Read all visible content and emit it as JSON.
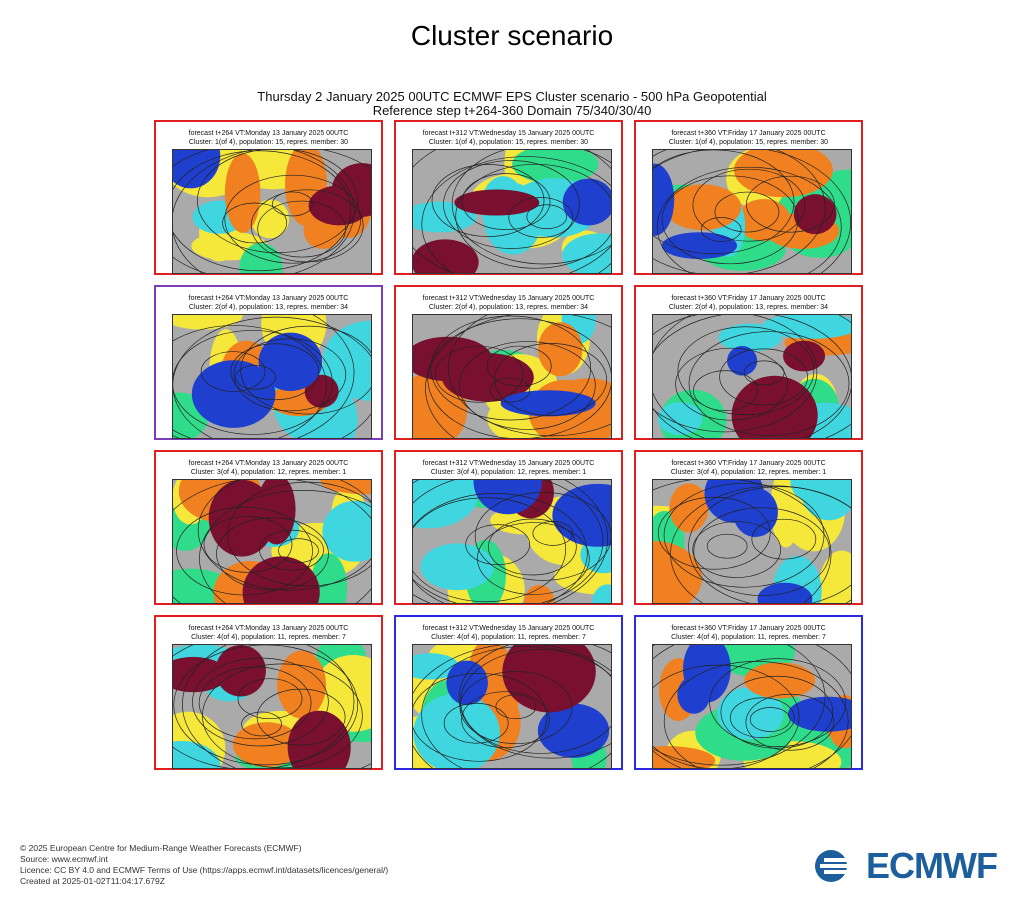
{
  "page_title": "Cluster scenario",
  "header": {
    "line1": "Thursday 2 January 2025 00UTC ECMWF EPS Cluster scenario - 500 hPa Geopotential",
    "line2": "Reference step t+264-360 Domain 75/340/30/40"
  },
  "columns": [
    {
      "forecast": "forecast t+264 VT:Monday 13 January 2025 00UTC"
    },
    {
      "forecast": "forecast t+312 VT:Wednesday 15 January 2025 00UTC"
    },
    {
      "forecast": "forecast t+360 VT:Friday 17 January 2025 00UTC"
    }
  ],
  "clusters": [
    {
      "label": "Cluster: 1(of 4), population: 15, repres. member: 30",
      "borders": [
        "#e02020",
        "#e02020",
        "#e02020"
      ]
    },
    {
      "label": "Cluster: 2(of 4), population: 13, repres. member: 34",
      "borders": [
        "#7a3fb8",
        "#e02020",
        "#e02020"
      ]
    },
    {
      "label": "Cluster: 3(of 4), population: 12, repres. member: 1",
      "borders": [
        "#e02020",
        "#e02020",
        "#e02020"
      ]
    },
    {
      "label": "Cluster: 4(of 4), population: 11, repres. member: 7",
      "borders": [
        "#e02020",
        "#2a2ae0",
        "#2a2ae0"
      ]
    }
  ],
  "footer": {
    "copyright": "© 2025 European Centre for Medium-Range Weather Forecasts (ECMWF)",
    "source": "Source: www.ecmwf.int",
    "licence": "Licence: CC BY 4.0 and ECMWF Terms of Use (https://apps.ecmwf.int/datasets/licences/general/)",
    "created": "Created at 2025-01-02T11:04:17.679Z"
  },
  "logo": {
    "text": "ECMWF"
  },
  "colors": {
    "anomaly_neg_strong": "#1f3fcf",
    "anomaly_neg": "#3fd6e0",
    "anomaly_neg_weak": "#2fdc8a",
    "anomaly_pos_weak": "#f5e83a",
    "anomaly_pos": "#f08020",
    "anomaly_pos_strong": "#7a1030"
  }
}
